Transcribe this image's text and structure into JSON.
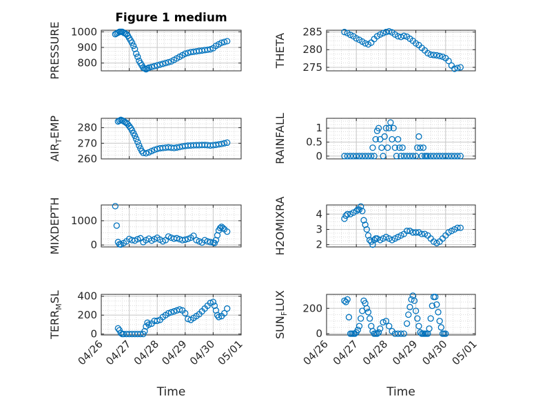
{
  "title": "Figure 1 medium",
  "x_label": "Time",
  "x_ticks": [
    "04/26",
    "04/27",
    "04/28",
    "04/29",
    "04/30",
    "05/01"
  ],
  "marker_color": "#0072BD",
  "chart_data": [
    {
      "type": "scatter",
      "ylabel": "PRESSURE",
      "ylim": [
        750,
        1010
      ],
      "yticks": [
        800,
        900,
        1000
      ],
      "x": [
        26.5,
        26.55,
        26.6,
        26.65,
        26.7,
        26.75,
        26.8,
        26.85,
        26.9,
        26.95,
        27.0,
        27.05,
        27.1,
        27.15,
        27.2,
        27.25,
        27.3,
        27.35,
        27.4,
        27.45,
        27.5,
        27.55,
        27.6,
        27.65,
        27.7,
        27.8,
        27.9,
        28.0,
        28.1,
        28.2,
        28.3,
        28.4,
        28.5,
        28.6,
        28.7,
        28.8,
        28.9,
        29.0,
        29.1,
        29.2,
        29.3,
        29.4,
        29.5,
        29.6,
        29.7,
        29.8,
        29.9,
        30.0,
        30.1,
        30.2,
        30.3,
        30.4,
        30.5
      ],
      "values": [
        985,
        990,
        995,
        1000,
        1000,
        1000,
        995,
        990,
        985,
        975,
        960,
        945,
        930,
        910,
        890,
        860,
        840,
        815,
        800,
        785,
        770,
        765,
        760,
        765,
        770,
        775,
        780,
        785,
        790,
        795,
        800,
        805,
        810,
        820,
        830,
        840,
        850,
        860,
        865,
        870,
        872,
        875,
        878,
        880,
        883,
        885,
        888,
        895,
        910,
        920,
        930,
        935,
        940
      ]
    },
    {
      "type": "scatter",
      "ylabel": "THETA",
      "ylim": [
        274,
        285.5
      ],
      "yticks": [
        275,
        280,
        285
      ],
      "x": [
        26.6,
        26.7,
        26.8,
        26.9,
        27.0,
        27.1,
        27.2,
        27.3,
        27.4,
        27.5,
        27.6,
        27.7,
        27.8,
        27.9,
        28.0,
        28.1,
        28.2,
        28.3,
        28.4,
        28.5,
        28.6,
        28.7,
        28.8,
        28.9,
        29.0,
        29.1,
        29.2,
        29.3,
        29.4,
        29.5,
        29.6,
        29.7,
        29.8,
        29.9,
        30.0,
        30.1,
        30.2,
        30.3,
        30.4,
        30.5
      ],
      "values": [
        285,
        284.7,
        284.2,
        283.8,
        283.2,
        282.8,
        282.3,
        281.8,
        281.5,
        282,
        283,
        283.8,
        284.3,
        284.7,
        285,
        285.2,
        284.9,
        284.3,
        283.8,
        283.6,
        283.9,
        283.7,
        283.1,
        282.5,
        281.8,
        281.3,
        280.5,
        279.8,
        279,
        278.6,
        278.5,
        278.4,
        278.2,
        278,
        277.6,
        276.8,
        275.5,
        274.6,
        274.8,
        275
      ]
    },
    {
      "type": "scatter",
      "ylabel": "AIR_TEMP",
      "ylim": [
        260,
        286
      ],
      "yticks": [
        260,
        270,
        280
      ],
      "x": [
        26.6,
        26.65,
        26.7,
        26.75,
        26.8,
        26.85,
        26.9,
        26.95,
        27.0,
        27.05,
        27.1,
        27.15,
        27.2,
        27.25,
        27.3,
        27.35,
        27.4,
        27.45,
        27.5,
        27.6,
        27.7,
        27.8,
        27.9,
        28.0,
        28.1,
        28.2,
        28.3,
        28.4,
        28.5,
        28.6,
        28.7,
        28.8,
        28.9,
        29.0,
        29.1,
        29.2,
        29.3,
        29.4,
        29.5,
        29.6,
        29.7,
        29.8,
        29.9,
        30.0,
        30.1,
        30.2,
        30.3,
        30.4,
        30.5
      ],
      "values": [
        284,
        284.5,
        285,
        284.6,
        284.2,
        283.6,
        283,
        282.2,
        281,
        279.8,
        278.3,
        276.5,
        274.8,
        272.8,
        270.8,
        268.6,
        266.7,
        265,
        263.8,
        263.6,
        264.2,
        265,
        265.8,
        266.4,
        266.8,
        267,
        267.2,
        267.4,
        267.2,
        267,
        267.3,
        267.6,
        268,
        268.3,
        268.5,
        268.6,
        268.7,
        268.8,
        268.8,
        268.9,
        268.9,
        268.8,
        268.6,
        268.8,
        269,
        269.3,
        269.6,
        270,
        270.4
      ]
    },
    {
      "type": "scatter",
      "ylabel": "RAINFALL",
      "ylim": [
        -0.1,
        1.35
      ],
      "yticks": [
        0,
        0.5,
        1
      ],
      "x": [
        26.6,
        26.7,
        26.8,
        26.9,
        27.0,
        27.1,
        27.2,
        27.3,
        27.4,
        27.5,
        27.55,
        27.6,
        27.65,
        27.7,
        27.75,
        27.8,
        27.85,
        27.9,
        27.95,
        28.0,
        28.05,
        28.1,
        28.15,
        28.2,
        28.25,
        28.3,
        28.35,
        28.4,
        28.45,
        28.5,
        28.55,
        28.6,
        28.7,
        28.8,
        28.9,
        29.0,
        29.05,
        29.1,
        29.15,
        29.2,
        29.25,
        29.3,
        29.35,
        29.4,
        29.5,
        29.6,
        29.7,
        29.8,
        29.9,
        30.0,
        30.1,
        30.2,
        30.3,
        30.4,
        30.5
      ],
      "values": [
        0,
        0,
        0,
        0,
        0,
        0,
        0,
        0,
        0,
        0,
        0.3,
        0,
        0.6,
        0.9,
        1.0,
        0.6,
        0.3,
        0,
        0.7,
        1.0,
        0.3,
        1.0,
        1.2,
        0.6,
        1.0,
        0.3,
        0,
        0.6,
        0.3,
        0,
        0.3,
        0,
        0,
        0,
        0,
        0,
        0.3,
        0.7,
        0.3,
        0,
        0.3,
        0,
        0,
        0,
        0,
        0,
        0,
        0,
        0,
        0,
        0,
        0,
        0,
        0,
        0
      ]
    },
    {
      "type": "scatter",
      "ylabel": "MIXDEPTH",
      "ylim": [
        -80,
        1650
      ],
      "yticks": [
        0,
        1000
      ],
      "x": [
        26.5,
        26.55,
        26.6,
        26.65,
        26.7,
        26.8,
        26.9,
        27.0,
        27.1,
        27.2,
        27.3,
        27.4,
        27.5,
        27.6,
        27.7,
        27.8,
        27.9,
        28.0,
        28.1,
        28.2,
        28.3,
        28.4,
        28.5,
        28.6,
        28.7,
        28.8,
        28.9,
        29.0,
        29.1,
        29.2,
        29.3,
        29.4,
        29.5,
        29.6,
        29.7,
        29.8,
        29.9,
        30.0,
        30.05,
        30.1,
        30.15,
        30.2,
        30.25,
        30.3,
        30.35,
        30.4,
        30.5
      ],
      "values": [
        1600,
        800,
        120,
        30,
        20,
        80,
        150,
        250,
        200,
        180,
        240,
        280,
        120,
        200,
        260,
        180,
        240,
        300,
        220,
        150,
        200,
        350,
        300,
        260,
        280,
        240,
        200,
        220,
        250,
        300,
        380,
        200,
        150,
        100,
        200,
        150,
        120,
        100,
        80,
        200,
        400,
        600,
        700,
        750,
        700,
        650,
        550
      ]
    },
    {
      "type": "scatter",
      "ylabel": "H2OMIXRA",
      "ylim": [
        1.85,
        4.6
      ],
      "yticks": [
        2,
        3,
        4
      ],
      "x": [
        26.6,
        26.65,
        26.7,
        26.8,
        26.9,
        27.0,
        27.05,
        27.1,
        27.15,
        27.2,
        27.25,
        27.3,
        27.35,
        27.4,
        27.45,
        27.5,
        27.55,
        27.6,
        27.65,
        27.7,
        27.8,
        27.9,
        28.0,
        28.1,
        28.2,
        28.3,
        28.4,
        28.5,
        28.6,
        28.7,
        28.8,
        28.9,
        29.0,
        29.1,
        29.2,
        29.3,
        29.4,
        29.5,
        29.6,
        29.7,
        29.8,
        29.9,
        30.0,
        30.1,
        30.2,
        30.3,
        30.4,
        30.5
      ],
      "values": [
        3.7,
        3.9,
        4.0,
        4.0,
        4.1,
        4.2,
        4.3,
        4.3,
        4.5,
        4.2,
        3.6,
        3.3,
        3.0,
        2.6,
        2.3,
        2.2,
        2.0,
        2.3,
        2.4,
        2.4,
        2.3,
        2.4,
        2.5,
        2.4,
        2.3,
        2.4,
        2.5,
        2.6,
        2.7,
        2.9,
        2.9,
        2.8,
        2.8,
        2.8,
        2.7,
        2.7,
        2.6,
        2.4,
        2.2,
        2.1,
        2.2,
        2.4,
        2.6,
        2.8,
        2.9,
        3.0,
        3.1,
        3.1
      ]
    },
    {
      "type": "scatter",
      "ylabel": "TERR_MSL",
      "ylim": [
        -10,
        420
      ],
      "yticks": [
        0,
        200,
        400
      ],
      "x": [
        26.6,
        26.65,
        26.7,
        26.75,
        26.8,
        26.9,
        27.0,
        27.1,
        27.2,
        27.3,
        27.4,
        27.5,
        27.55,
        27.6,
        27.65,
        27.7,
        27.8,
        27.9,
        28.0,
        28.1,
        28.2,
        28.3,
        28.4,
        28.5,
        28.6,
        28.7,
        28.8,
        28.9,
        29.0,
        29.1,
        29.2,
        29.3,
        29.4,
        29.5,
        29.6,
        29.7,
        29.8,
        29.9,
        30.0,
        30.05,
        30.1,
        30.15,
        30.2,
        30.3,
        30.4,
        30.5
      ],
      "values": [
        60,
        40,
        10,
        0,
        0,
        0,
        0,
        0,
        0,
        0,
        0,
        0,
        30,
        80,
        120,
        100,
        110,
        140,
        140,
        150,
        180,
        200,
        220,
        230,
        240,
        250,
        260,
        250,
        220,
        160,
        150,
        170,
        190,
        210,
        240,
        270,
        300,
        330,
        340,
        300,
        250,
        200,
        180,
        190,
        220,
        270
      ]
    },
    {
      "type": "scatter",
      "ylabel": "SUN_FLUX",
      "ylim": [
        -10,
        310
      ],
      "yticks": [
        0,
        200
      ],
      "x": [
        26.6,
        26.65,
        26.7,
        26.75,
        26.8,
        26.85,
        26.9,
        26.95,
        27.0,
        27.05,
        27.1,
        27.15,
        27.2,
        27.25,
        27.3,
        27.35,
        27.4,
        27.45,
        27.5,
        27.55,
        27.6,
        27.65,
        27.7,
        27.75,
        27.8,
        27.9,
        28.0,
        28.1,
        28.2,
        28.3,
        28.4,
        28.5,
        28.6,
        28.7,
        28.75,
        28.8,
        28.85,
        28.9,
        28.95,
        29.0,
        29.05,
        29.1,
        29.15,
        29.2,
        29.25,
        29.3,
        29.35,
        29.4,
        29.45,
        29.5,
        29.55,
        29.6,
        29.65,
        29.7,
        29.75,
        29.8,
        29.85,
        29.9,
        29.95,
        30.0
      ],
      "values": [
        260,
        250,
        270,
        130,
        0,
        0,
        0,
        0,
        10,
        30,
        60,
        120,
        180,
        260,
        240,
        200,
        170,
        120,
        60,
        20,
        0,
        0,
        0,
        10,
        40,
        90,
        100,
        60,
        20,
        0,
        0,
        0,
        0,
        80,
        150,
        210,
        270,
        300,
        260,
        180,
        120,
        60,
        10,
        0,
        0,
        0,
        0,
        0,
        40,
        120,
        220,
        290,
        290,
        230,
        170,
        100,
        50,
        0,
        0,
        0
      ]
    }
  ]
}
